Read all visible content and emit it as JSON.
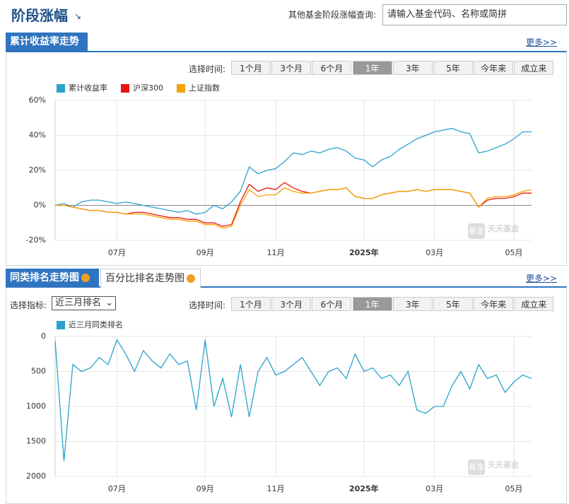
{
  "header": {
    "title": "阶段涨幅",
    "search_label": "其他基金阶段涨幅查询:",
    "search_placeholder": "请输入基金代码、名称或简拼"
  },
  "section1": {
    "tab": "累计收益率走势",
    "more": "更多>>",
    "time_label": "选择时间:",
    "buttons": [
      "1个月",
      "3个月",
      "6个月",
      "1年",
      "3年",
      "5年",
      "今年来",
      "成立来"
    ],
    "active": 3
  },
  "section2": {
    "tabs": [
      "同类排名走势图",
      "百分比排名走势图"
    ],
    "more": "更多>>",
    "indicator_label": "选择指标:",
    "indicator": "近三月排名",
    "time_label": "选择时间:",
    "buttons": [
      "1个月",
      "3个月",
      "6个月",
      "1年",
      "3年",
      "5年",
      "今年来",
      "成立来"
    ],
    "active": 3
  },
  "watermark": {
    "logo": "基金",
    "brand": "天天基金"
  },
  "chart_data": [
    {
      "type": "line",
      "categories": [
        null,
        null,
        null,
        null,
        null,
        null,
        null,
        "07月",
        null,
        null,
        null,
        null,
        null,
        null,
        null,
        null,
        null,
        "09月",
        null,
        null,
        null,
        null,
        null,
        null,
        null,
        "11月",
        null,
        null,
        null,
        null,
        null,
        null,
        null,
        null,
        null,
        "2025年",
        null,
        null,
        null,
        null,
        null,
        null,
        null,
        "03月",
        null,
        null,
        null,
        null,
        null,
        null,
        null,
        null,
        "05月",
        null,
        null
      ],
      "ylim": [
        -20,
        60
      ],
      "yticks": [
        {
          "value": -20,
          "label": "-20%"
        },
        {
          "value": 0,
          "label": "0%"
        },
        {
          "value": 20,
          "label": "20%"
        },
        {
          "value": 40,
          "label": "40%"
        },
        {
          "value": 60,
          "label": "60%"
        }
      ],
      "grid": true,
      "series": [
        {
          "name": "累计收益率",
          "color": "#2aa3cc",
          "values": [
            0,
            1,
            -1,
            2,
            3,
            3,
            2,
            1,
            2,
            1,
            0,
            -1,
            -2,
            -3,
            -4,
            -3,
            -5,
            -4,
            0,
            -2,
            2,
            8,
            22,
            18,
            20,
            21,
            25,
            30,
            29,
            31,
            30,
            32,
            33,
            31,
            27,
            26,
            22,
            26,
            28,
            32,
            35,
            38,
            40,
            42,
            43,
            44,
            42,
            41,
            30,
            31,
            33,
            35,
            38,
            42,
            42
          ]
        },
        {
          "name": "沪深300",
          "color": "#e8140c",
          "values": [
            0,
            0,
            -1,
            -2,
            -3,
            -3,
            -4,
            -4,
            -5,
            -4,
            -4,
            -5,
            -6,
            -7,
            -7,
            -8,
            -8,
            -10,
            -10,
            -12,
            -11,
            2,
            12,
            8,
            10,
            9,
            13,
            10,
            8,
            7,
            8,
            9,
            9,
            10,
            5,
            4,
            4,
            6,
            7,
            8,
            8,
            9,
            8,
            9,
            9,
            9,
            8,
            7,
            -1,
            3,
            4,
            4,
            5,
            7,
            7
          ]
        },
        {
          "name": "上证指数",
          "color": "#f5a300",
          "values": [
            0,
            0,
            -1,
            -2,
            -3,
            -3,
            -4,
            -4,
            -5,
            -5,
            -5,
            -6,
            -7,
            -8,
            -8,
            -9,
            -9,
            -11,
            -11,
            -13,
            -12,
            0,
            9,
            5,
            6,
            6,
            10,
            8,
            7,
            7,
            8,
            9,
            9,
            10,
            5,
            4,
            4,
            6,
            7,
            8,
            8,
            9,
            8,
            9,
            9,
            9,
            8,
            7,
            -1,
            4,
            5,
            5,
            6,
            8,
            9
          ]
        }
      ]
    },
    {
      "type": "line",
      "categories": [
        null,
        null,
        null,
        null,
        null,
        null,
        null,
        "07月",
        null,
        null,
        null,
        null,
        null,
        null,
        null,
        null,
        null,
        "09月",
        null,
        null,
        null,
        null,
        null,
        null,
        null,
        "11月",
        null,
        null,
        null,
        null,
        null,
        null,
        null,
        null,
        null,
        "2025年",
        null,
        null,
        null,
        null,
        null,
        null,
        null,
        "03月",
        null,
        null,
        null,
        null,
        null,
        null,
        null,
        null,
        "05月",
        null,
        null
      ],
      "ylim": [
        2000,
        0
      ],
      "yticks": [
        0,
        500,
        1000,
        1500,
        2000
      ],
      "grid": true,
      "series": [
        {
          "name": "近三月同类排名",
          "color": "#2aa3cc",
          "values": [
            60,
            1780,
            400,
            500,
            450,
            300,
            400,
            50,
            250,
            500,
            200,
            350,
            450,
            250,
            400,
            350,
            1050,
            50,
            1000,
            600,
            1150,
            400,
            1150,
            500,
            300,
            550,
            500,
            400,
            300,
            500,
            700,
            500,
            450,
            600,
            250,
            500,
            450,
            600,
            550,
            700,
            500,
            1050,
            1100,
            1000,
            1000,
            700,
            500,
            750,
            400,
            600,
            550,
            800,
            650,
            550,
            600
          ]
        }
      ]
    }
  ]
}
